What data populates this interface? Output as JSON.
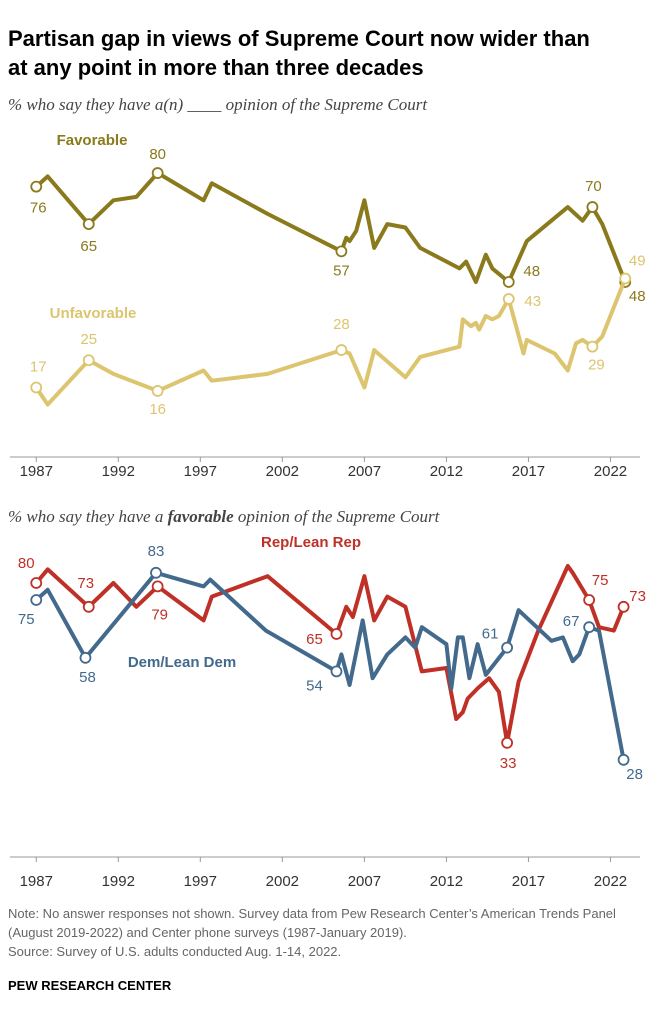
{
  "title": "Partisan gap in views of Supreme Court now wider than at any point in more than three decades",
  "chart_data": [
    {
      "type": "line",
      "subtitle": [
        "% who say they have a(n) ____ opinion of the Supreme Court"
      ],
      "xlim": [
        1985.4,
        2023.8
      ],
      "xticks": [
        1987,
        1992,
        1997,
        2002,
        2007,
        2012,
        2017,
        2022
      ],
      "ylim": [
        -4,
        90
      ],
      "series": [
        {
          "name": "Favorable",
          "color": "#8a7a1c",
          "x": [
            1987.0,
            1987.7,
            1990.2,
            1991.7,
            1993.1,
            1994.4,
            1997.2,
            1997.7,
            2001.1,
            2005.6,
            2005.9,
            2006.1,
            2006.5,
            2007.0,
            2007.6,
            2008.4,
            2009.5,
            2010.4,
            2012.8,
            2013.2,
            2013.8,
            2014.4,
            2014.8,
            2015.8,
            2016.9,
            2019.4,
            2020.3,
            2020.9,
            2021.5,
            2022.9
          ],
          "values": [
            76,
            79,
            65,
            72,
            73,
            80,
            72,
            77,
            68,
            57,
            61,
            60,
            63,
            72,
            58,
            65,
            64,
            58,
            52,
            54,
            48,
            56,
            52,
            48,
            60,
            70,
            66,
            70,
            65,
            48
          ],
          "value_labels": [
            "76",
            null,
            "65",
            null,
            null,
            "80",
            null,
            null,
            null,
            "57",
            null,
            null,
            null,
            null,
            null,
            null,
            null,
            null,
            null,
            null,
            null,
            null,
            null,
            "48",
            null,
            null,
            null,
            "70",
            null,
            "48"
          ]
        },
        {
          "name": "Unfavorable",
          "color": "#dcc56e",
          "x": [
            1987.0,
            1987.7,
            1990.2,
            1991.7,
            1994.4,
            1997.2,
            1997.7,
            2001.1,
            2005.6,
            2006.1,
            2007.0,
            2007.6,
            2009.5,
            2010.4,
            2012.8,
            2013.0,
            2013.5,
            2013.8,
            2014.0,
            2014.4,
            2014.8,
            2015.2,
            2015.8,
            2016.7,
            2016.9,
            2018.6,
            2019.4,
            2019.9,
            2020.3,
            2020.9,
            2021.5,
            2022.9
          ],
          "values": [
            17,
            12,
            25,
            21,
            16,
            22,
            19,
            21,
            28,
            27,
            17,
            28,
            20,
            26,
            29,
            37,
            35,
            36,
            34,
            38,
            37,
            38,
            43,
            27,
            31,
            27,
            22,
            30,
            31,
            29,
            32,
            49
          ],
          "value_labels": [
            "17",
            null,
            "25",
            null,
            "16",
            null,
            null,
            null,
            "28",
            null,
            null,
            null,
            null,
            null,
            null,
            null,
            null,
            null,
            null,
            null,
            null,
            null,
            "43",
            null,
            null,
            null,
            null,
            null,
            null,
            "29",
            null,
            "49"
          ]
        }
      ]
    },
    {
      "type": "line",
      "subtitle": [
        "% who say they have a ",
        "favorable",
        " opinion of the Supreme Court"
      ],
      "xlim": [
        1985.4,
        2023.8
      ],
      "xticks": [
        1987,
        1992,
        1997,
        2002,
        2007,
        2012,
        2017,
        2022
      ],
      "ylim": [
        0,
        100
      ],
      "series": [
        {
          "name": "Rep/Lean Rep",
          "color": "#bf3026",
          "x": [
            1987.0,
            1987.7,
            1990.2,
            1991.7,
            1993.1,
            1994.4,
            1997.2,
            1997.7,
            2001.1,
            2005.3,
            2005.9,
            2006.3,
            2007.0,
            2007.6,
            2008.4,
            2009.5,
            2010.5,
            2012.0,
            2012.6,
            2013.0,
            2013.3,
            2013.9,
            2014.6,
            2015.2,
            2015.7,
            2016.4,
            2017.6,
            2019.4,
            2019.7,
            2020.7,
            2021.3,
            2022.2,
            2022.8
          ],
          "values": [
            80,
            84,
            73,
            80,
            73,
            79,
            69,
            76,
            82,
            65,
            73,
            70,
            82,
            69,
            76,
            73,
            54,
            55,
            40,
            42,
            46,
            49,
            52,
            48,
            33,
            51,
            66,
            85,
            83,
            75,
            67,
            66,
            73
          ],
          "value_labels": [
            "80",
            null,
            "73",
            null,
            null,
            "79",
            null,
            null,
            null,
            "65",
            null,
            null,
            null,
            null,
            null,
            null,
            null,
            null,
            null,
            null,
            null,
            null,
            null,
            null,
            "33",
            null,
            null,
            null,
            null,
            "75",
            null,
            null,
            "73"
          ]
        },
        {
          "name": "Dem/Lean Dem",
          "color": "#436a8c",
          "x": [
            1987.0,
            1987.7,
            1990.0,
            1994.3,
            1997.2,
            1997.6,
            2001.0,
            2005.3,
            2005.6,
            2006.1,
            2006.9,
            2007.5,
            2008.4,
            2009.5,
            2010.1,
            2010.5,
            2012.0,
            2012.3,
            2012.7,
            2013.0,
            2013.4,
            2013.9,
            2014.4,
            2015.7,
            2016.4,
            2018.4,
            2019.1,
            2019.7,
            2020.1,
            2020.7,
            2021.3,
            2022.8
          ],
          "values": [
            75,
            78,
            58,
            83,
            79,
            81,
            66,
            54,
            59,
            50,
            69,
            52,
            59,
            64,
            61,
            67,
            62,
            49,
            64,
            64,
            52,
            62,
            53,
            61,
            72,
            63,
            64,
            57,
            59,
            67,
            66,
            28
          ],
          "value_labels": [
            "75",
            null,
            "58",
            "83",
            null,
            null,
            null,
            "54",
            null,
            null,
            null,
            null,
            null,
            null,
            null,
            null,
            null,
            null,
            null,
            null,
            null,
            null,
            null,
            "61",
            null,
            null,
            null,
            null,
            null,
            "67",
            null,
            "28"
          ]
        }
      ]
    }
  ],
  "note": "Note: No answer responses not shown. Survey data from Pew Research Center’s American Trends Panel (August 2019-2022) and Center phone surveys (1987-January 2019).",
  "source": "Source: Survey of U.S. adults conducted Aug. 1-14, 2022.",
  "credit": "PEW RESEARCH CENTER"
}
